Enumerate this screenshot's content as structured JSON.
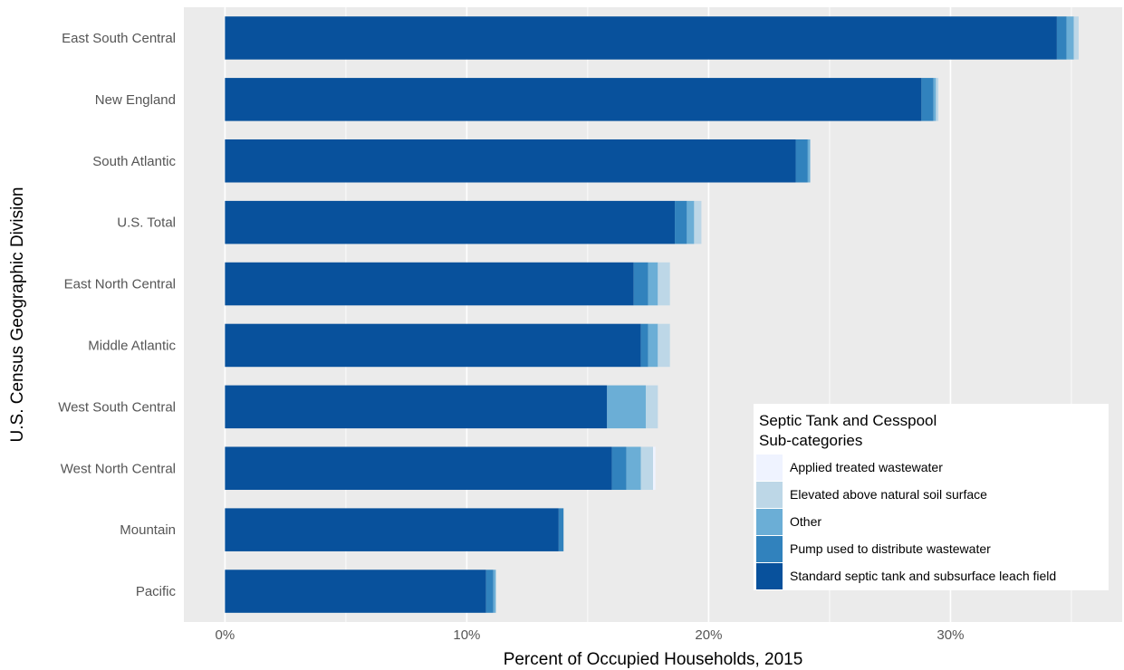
{
  "chart_data": {
    "type": "bar",
    "orientation": "horizontal",
    "stacked": true,
    "xlabel": "Percent of Occupied Households, 2015",
    "ylabel": "U.S. Census Geographic Division",
    "xlim": [
      -1.7,
      37.1
    ],
    "xticks": [
      0,
      10,
      20,
      30
    ],
    "xtick_labels": [
      "0%",
      "10%",
      "20%",
      "30%"
    ],
    "grid": true,
    "categories": [
      "East South Central",
      "New England",
      "South Atlantic",
      "U.S. Total",
      "East North Central",
      "Middle Atlantic",
      "West South Central",
      "West North Central",
      "Mountain",
      "Pacific"
    ],
    "series": [
      {
        "name": "Standard septic tank and subsurface leach field",
        "color": "#08519c",
        "values": [
          34.4,
          28.8,
          23.6,
          18.6,
          16.9,
          17.2,
          15.8,
          16.0,
          13.8,
          10.8
        ]
      },
      {
        "name": "Pump used to distribute wastewater",
        "color": "#3182bd",
        "values": [
          0.4,
          0.5,
          0.5,
          0.5,
          0.6,
          0.3,
          0.0,
          0.6,
          0.2,
          0.3
        ]
      },
      {
        "name": "Other",
        "color": "#6baed6",
        "values": [
          0.3,
          0.1,
          0.1,
          0.3,
          0.4,
          0.4,
          1.6,
          0.6,
          0.0,
          0.1
        ]
      },
      {
        "name": "Elevated above natural soil surface",
        "color": "#bdd7e7",
        "values": [
          0.2,
          0.1,
          0.0,
          0.3,
          0.5,
          0.5,
          0.5,
          0.5,
          0.0,
          0.0
        ]
      },
      {
        "name": "Applied treated wastewater",
        "color": "#eff3ff",
        "values": [
          0.0,
          0.0,
          0.0,
          0.0,
          0.0,
          0.0,
          0.0,
          0.1,
          0.0,
          0.0
        ]
      }
    ],
    "legend": {
      "title_lines": [
        "Septic Tank and Cesspool",
        "Sub-categories"
      ],
      "order": [
        4,
        3,
        2,
        1,
        0
      ],
      "position": "bottom-right-inside"
    },
    "panel_background": "#ebebeb",
    "gridline_color": "#ffffff"
  }
}
